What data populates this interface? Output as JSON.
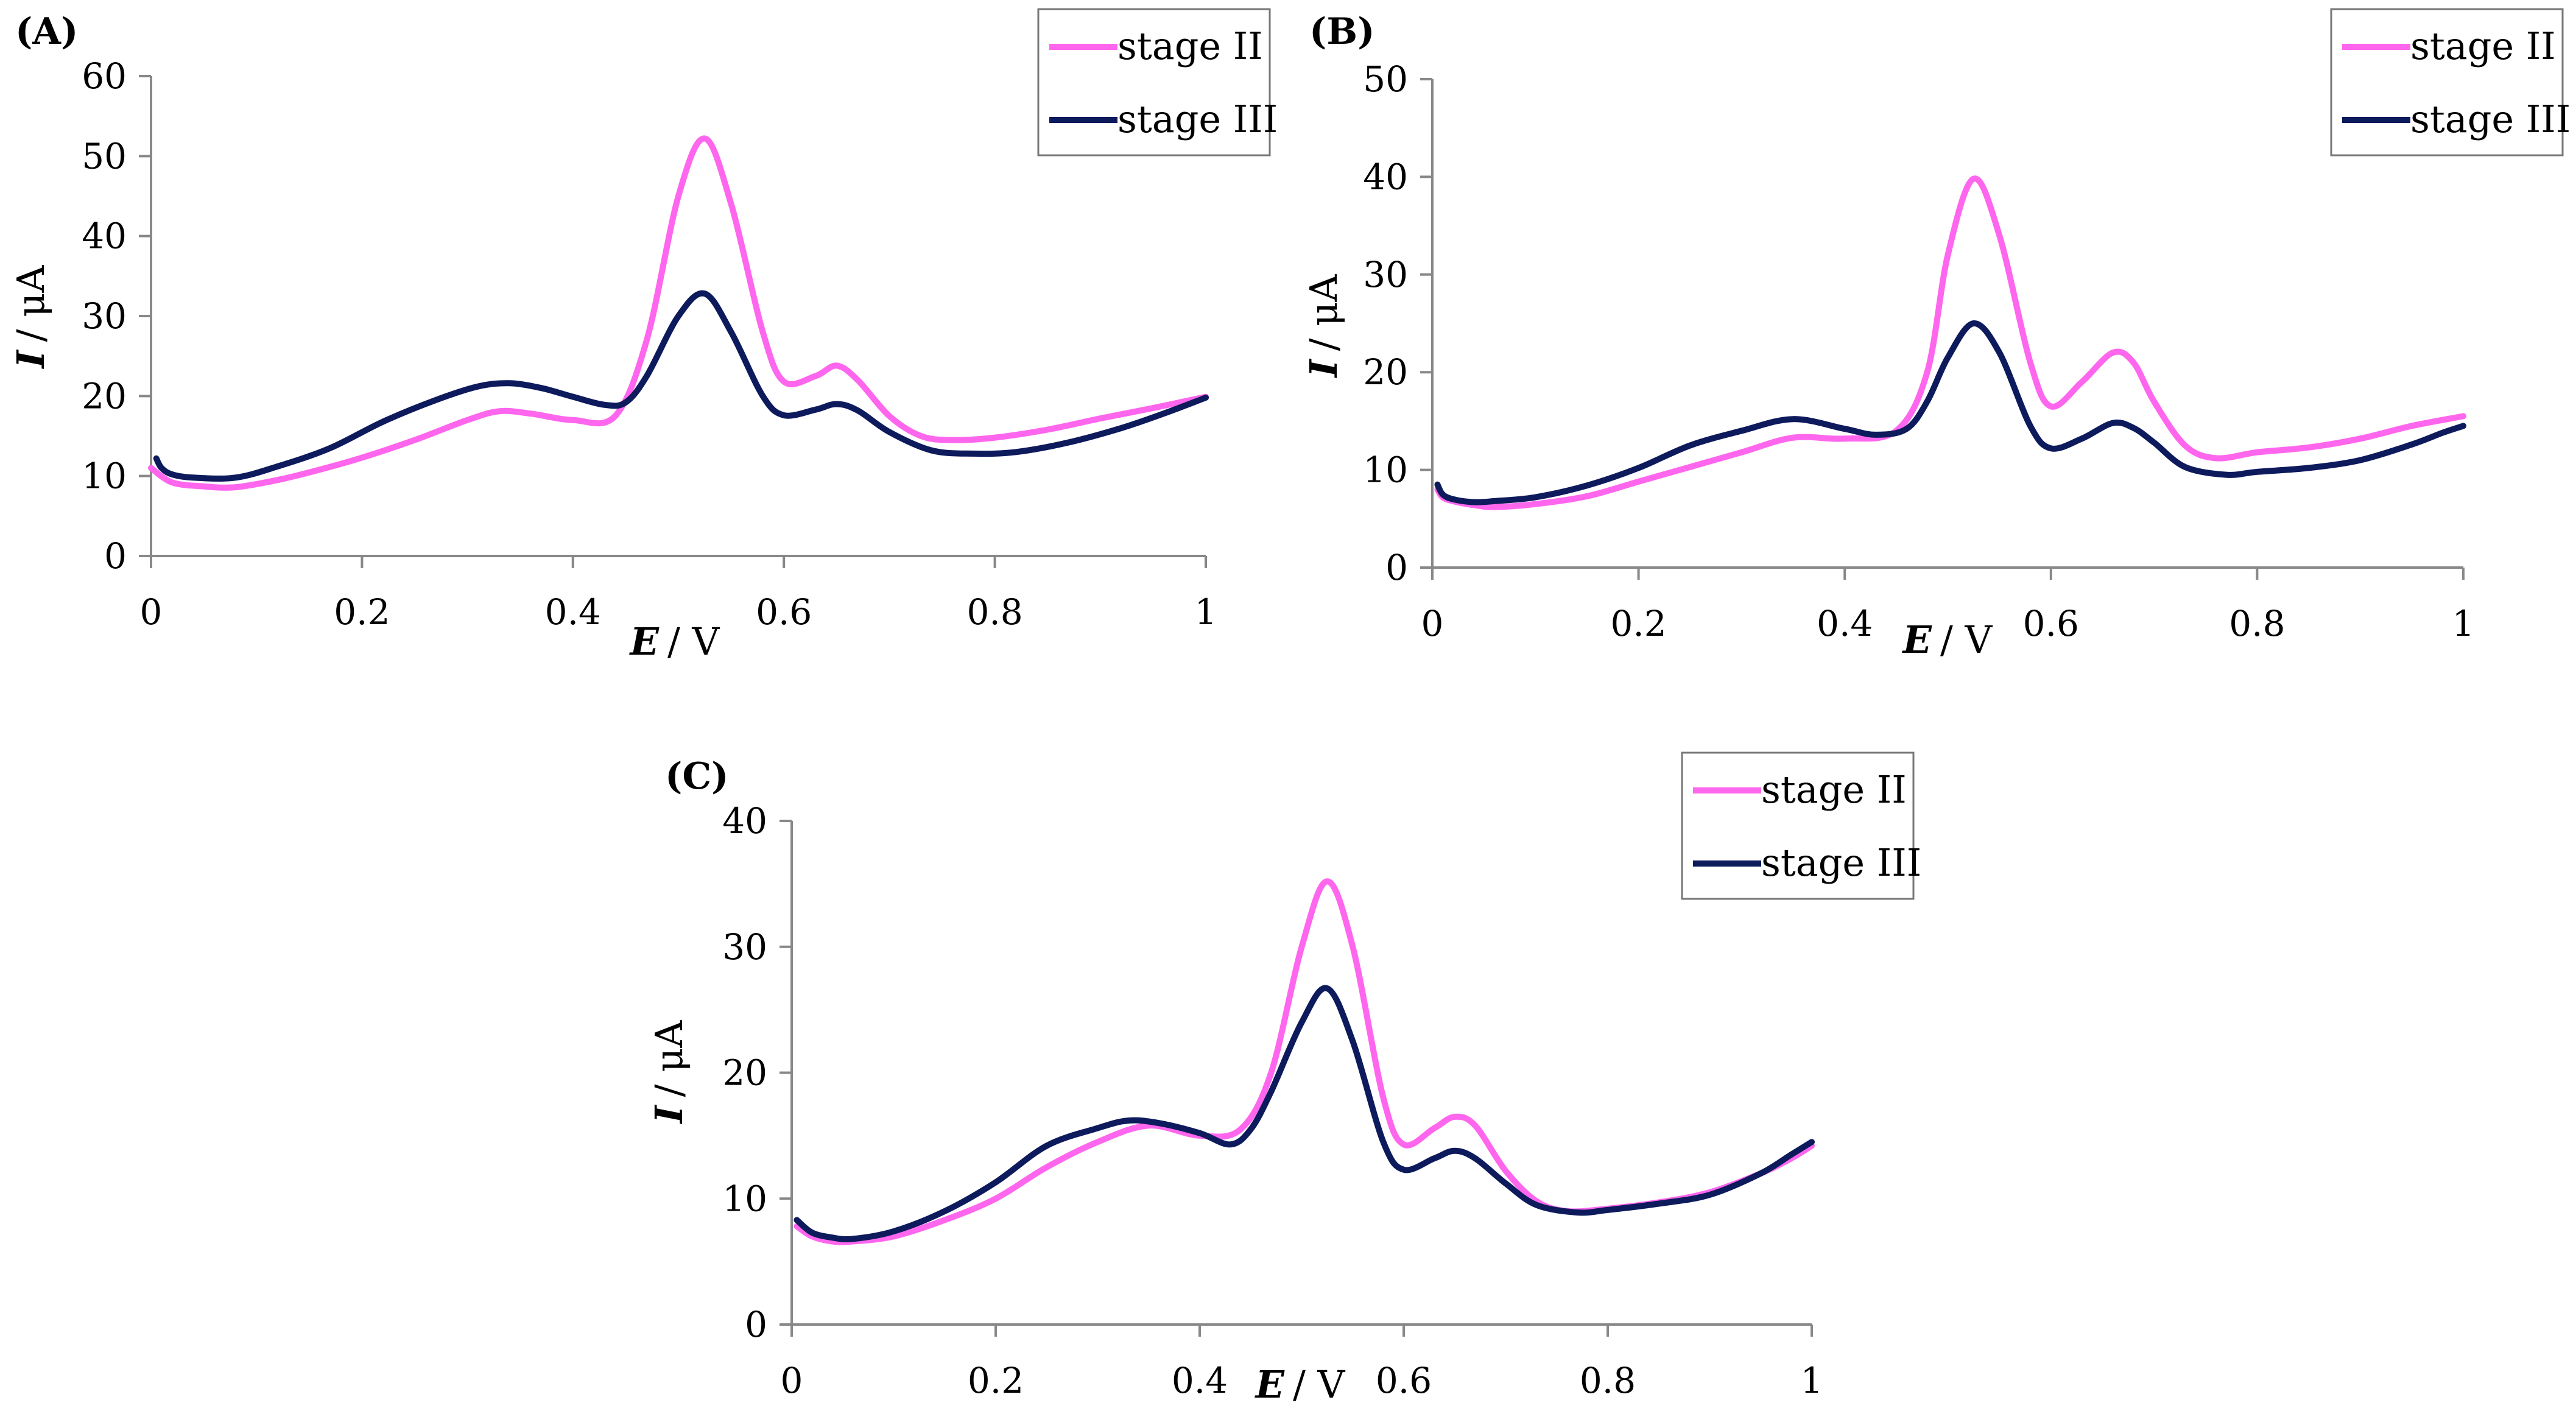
{
  "colors": {
    "stage_II": "#ff66ee",
    "stage_III": "#0d1a5c",
    "axis": "#888888"
  },
  "chart_data": [
    {
      "type": "line",
      "panel": "(A)",
      "xlabel_var": "E",
      "xlabel_unit": "/ V",
      "ylabel_var": "I",
      "ylabel_unit": "/ μA",
      "xlim": [
        0,
        1
      ],
      "ylim": [
        0,
        60
      ],
      "xticks": [
        "0",
        "0.2",
        "0.4",
        "0.6",
        "0.8",
        "1"
      ],
      "yticks": [
        "0",
        "10",
        "20",
        "30",
        "40",
        "50",
        "60"
      ],
      "legend": [
        "stage II",
        "stage III"
      ],
      "legend_position": "top-right",
      "series": [
        {
          "name": "stage II",
          "color": "#ff66ee",
          "x": [
            0,
            0.02,
            0.05,
            0.08,
            0.12,
            0.16,
            0.2,
            0.25,
            0.3,
            0.33,
            0.36,
            0.4,
            0.44,
            0.47,
            0.5,
            0.525,
            0.55,
            0.58,
            0.6,
            0.63,
            0.65,
            0.67,
            0.7,
            0.73,
            0.76,
            0.8,
            0.85,
            0.9,
            0.95,
            1.0
          ],
          "y": [
            11,
            9.2,
            8.7,
            8.6,
            9.5,
            10.8,
            12.3,
            14.5,
            17,
            18.1,
            17.8,
            17,
            17.5,
            27,
            45,
            52.2,
            44,
            28,
            21.8,
            22.5,
            23.8,
            22,
            17.5,
            15,
            14.5,
            14.8,
            15.8,
            17.2,
            18.5,
            19.9
          ]
        },
        {
          "name": "stage III",
          "color": "#0d1a5c",
          "x": [
            0.005,
            0.01,
            0.02,
            0.04,
            0.08,
            0.12,
            0.17,
            0.22,
            0.27,
            0.31,
            0.34,
            0.37,
            0.4,
            0.43,
            0.45,
            0.47,
            0.5,
            0.525,
            0.55,
            0.58,
            0.6,
            0.63,
            0.65,
            0.67,
            0.7,
            0.74,
            0.78,
            0.82,
            0.87,
            0.92,
            0.96,
            1.0
          ],
          "y": [
            12.2,
            11,
            10.2,
            9.8,
            9.8,
            11.2,
            13.5,
            16.8,
            19.5,
            21.2,
            21.6,
            21,
            19.9,
            18.9,
            19.2,
            22.5,
            30,
            32.8,
            28,
            20,
            17.6,
            18.3,
            19,
            18.2,
            15.5,
            13.2,
            12.8,
            13,
            14.2,
            16,
            17.8,
            19.8
          ]
        }
      ]
    },
    {
      "type": "line",
      "panel": "(B)",
      "xlabel_var": "E",
      "xlabel_unit": "/ V",
      "ylabel_var": "I",
      "ylabel_unit": "/ μA",
      "xlim": [
        0,
        1
      ],
      "ylim": [
        0,
        50
      ],
      "xticks": [
        "0",
        "0.2",
        "0.4",
        "0.6",
        "0.8",
        "1"
      ],
      "yticks": [
        "0",
        "10",
        "20",
        "30",
        "40",
        "50"
      ],
      "legend": [
        "stage II",
        "stage III"
      ],
      "legend_position": "top-right",
      "series": [
        {
          "name": "stage II",
          "color": "#ff66ee",
          "x": [
            0.005,
            0.01,
            0.02,
            0.04,
            0.06,
            0.1,
            0.15,
            0.2,
            0.25,
            0.3,
            0.35,
            0.4,
            0.45,
            0.48,
            0.5,
            0.525,
            0.55,
            0.58,
            0.6,
            0.63,
            0.66,
            0.68,
            0.7,
            0.73,
            0.76,
            0.8,
            0.85,
            0.9,
            0.95,
            1.0
          ],
          "y": [
            8,
            7.2,
            6.8,
            6.4,
            6.2,
            6.5,
            7.3,
            8.8,
            10.3,
            11.8,
            13.3,
            13.2,
            14,
            20,
            32,
            39.8,
            34,
            21,
            16.5,
            19,
            22,
            21,
            17,
            12.5,
            11.2,
            11.8,
            12.3,
            13.2,
            14.5,
            15.5
          ]
        },
        {
          "name": "stage III",
          "color": "#0d1a5c",
          "x": [
            0.005,
            0.01,
            0.02,
            0.04,
            0.06,
            0.1,
            0.15,
            0.2,
            0.25,
            0.3,
            0.35,
            0.4,
            0.43,
            0.46,
            0.48,
            0.5,
            0.525,
            0.55,
            0.58,
            0.6,
            0.63,
            0.66,
            0.68,
            0.7,
            0.73,
            0.77,
            0.8,
            0.85,
            0.9,
            0.95,
            0.98,
            1.0
          ],
          "y": [
            8.5,
            7.5,
            7,
            6.7,
            6.8,
            7.2,
            8.4,
            10.2,
            12.5,
            14,
            15.2,
            14.2,
            13.6,
            14.2,
            17,
            21.5,
            25,
            22,
            14.5,
            12.2,
            13.2,
            14.8,
            14.3,
            12.8,
            10.3,
            9.5,
            9.8,
            10.2,
            11,
            12.6,
            13.8,
            14.5
          ]
        }
      ]
    },
    {
      "type": "line",
      "panel": "(C)",
      "xlabel_var": "E",
      "xlabel_unit": "/ V",
      "ylabel_var": "I",
      "ylabel_unit": "/ μA",
      "xlim": [
        0,
        1
      ],
      "ylim": [
        0,
        40
      ],
      "xticks": [
        "0",
        "0.2",
        "0.4",
        "0.6",
        "0.8",
        "1"
      ],
      "yticks": [
        "0",
        "10",
        "20",
        "30",
        "40"
      ],
      "legend": [
        "stage II",
        "stage III"
      ],
      "legend_position": "top-right",
      "series": [
        {
          "name": "stage II",
          "color": "#ff66ee",
          "x": [
            0.005,
            0.02,
            0.04,
            0.06,
            0.1,
            0.15,
            0.2,
            0.25,
            0.3,
            0.35,
            0.4,
            0.44,
            0.47,
            0.5,
            0.525,
            0.55,
            0.58,
            0.6,
            0.63,
            0.65,
            0.67,
            0.7,
            0.73,
            0.76,
            0.8,
            0.85,
            0.9,
            0.95,
            0.98,
            1.0
          ],
          "y": [
            7.8,
            7,
            6.6,
            6.6,
            7,
            8.3,
            10,
            12.5,
            14.5,
            15.8,
            15,
            15.5,
            20,
            30,
            35.2,
            30,
            18,
            14.3,
            15.6,
            16.5,
            15.8,
            12.2,
            9.8,
            9,
            9.2,
            9.7,
            10.5,
            12,
            13.2,
            14.2
          ]
        },
        {
          "name": "stage III",
          "color": "#0d1a5c",
          "x": [
            0.005,
            0.02,
            0.04,
            0.06,
            0.1,
            0.15,
            0.2,
            0.25,
            0.3,
            0.33,
            0.36,
            0.4,
            0.43,
            0.45,
            0.47,
            0.5,
            0.525,
            0.55,
            0.58,
            0.6,
            0.63,
            0.65,
            0.67,
            0.7,
            0.73,
            0.77,
            0.8,
            0.85,
            0.9,
            0.95,
            0.98,
            1.0
          ],
          "y": [
            8.3,
            7.3,
            6.9,
            6.8,
            7.4,
            9,
            11.3,
            14.2,
            15.6,
            16.2,
            16,
            15.2,
            14.3,
            15.5,
            18.5,
            24,
            26.7,
            22.5,
            14.5,
            12.3,
            13.2,
            13.8,
            13.2,
            11.2,
            9.5,
            8.9,
            9.1,
            9.6,
            10.3,
            12,
            13.5,
            14.5
          ]
        }
      ]
    }
  ]
}
